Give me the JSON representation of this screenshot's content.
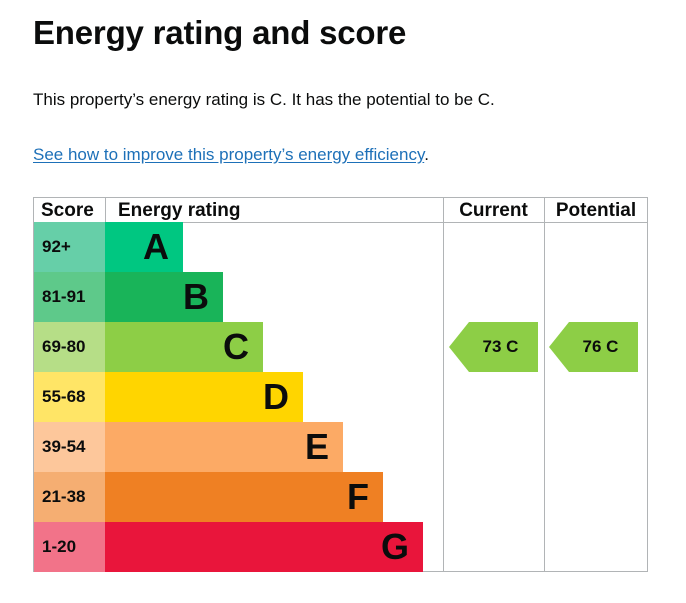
{
  "heading": "Energy rating and score",
  "summary": "This property’s energy rating is C. It has the potential to be C.",
  "link": {
    "text": "See how to improve this property’s energy efficiency",
    "suffix": "."
  },
  "table": {
    "headers": {
      "score": "Score",
      "rating": "Energy rating",
      "current": "Current",
      "potential": "Potential"
    },
    "bands": [
      {
        "score": "92+",
        "letter": "A",
        "band_color": "#00c781",
        "score_color": "#66cfa8"
      },
      {
        "score": "81-91",
        "letter": "B",
        "band_color": "#19b459",
        "score_color": "#5ec98a"
      },
      {
        "score": "69-80",
        "letter": "C",
        "band_color": "#8dce46",
        "score_color": "#b6de87"
      },
      {
        "score": "55-68",
        "letter": "D",
        "band_color": "#ffd500",
        "score_color": "#ffe566"
      },
      {
        "score": "39-54",
        "letter": "E",
        "band_color": "#fcaa65",
        "score_color": "#fdc79b"
      },
      {
        "score": "21-38",
        "letter": "F",
        "band_color": "#ef8023",
        "score_color": "#f5ae72"
      },
      {
        "score": "1-20",
        "letter": "G",
        "band_color": "#e9153b",
        "score_color": "#f27389"
      }
    ],
    "current": {
      "label": "73 C",
      "score": 73,
      "band": "C",
      "color": "#8dce46"
    },
    "potential": {
      "label": "76 C",
      "score": 76,
      "band": "C",
      "color": "#8dce46"
    }
  }
}
